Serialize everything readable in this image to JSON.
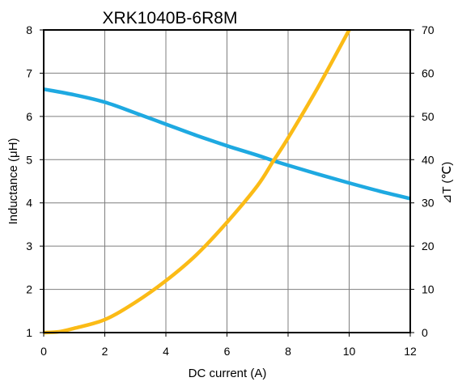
{
  "chart_data": {
    "type": "line",
    "title": "XRK1040B-6R8M",
    "xlabel": "DC current (A)",
    "ylabel": "Inductance (μH)",
    "y2label": "⊿T (℃)",
    "xlim": [
      0,
      12
    ],
    "ylim": [
      1,
      8
    ],
    "y2lim": [
      0,
      70
    ],
    "x_ticks": [
      "0",
      "2",
      "4",
      "6",
      "8",
      "10",
      "12"
    ],
    "y_ticks": [
      "1",
      "2",
      "3",
      "4",
      "5",
      "6",
      "7",
      "8"
    ],
    "y2_ticks": [
      "0",
      "10",
      "20",
      "30",
      "40",
      "50",
      "60",
      "70"
    ],
    "grid": true,
    "series": [
      {
        "axis": "left",
        "color": "#1ea9e1",
        "x": [
          0,
          1,
          2,
          3,
          4,
          5,
          6,
          7,
          7.5,
          8,
          9,
          10,
          11,
          12
        ],
        "y": [
          6.63,
          6.5,
          6.33,
          6.08,
          5.82,
          5.56,
          5.32,
          5.1,
          4.98,
          4.87,
          4.66,
          4.46,
          4.27,
          4.1
        ]
      },
      {
        "axis": "right",
        "color": "#fbbb16",
        "x": [
          0,
          0.5,
          1,
          2,
          3,
          4,
          5,
          6,
          7,
          7.5,
          8,
          9,
          10
        ],
        "y": [
          0,
          0.2,
          1,
          3,
          7,
          12,
          18,
          25.5,
          34,
          39.5,
          45,
          57,
          70
        ]
      }
    ]
  }
}
